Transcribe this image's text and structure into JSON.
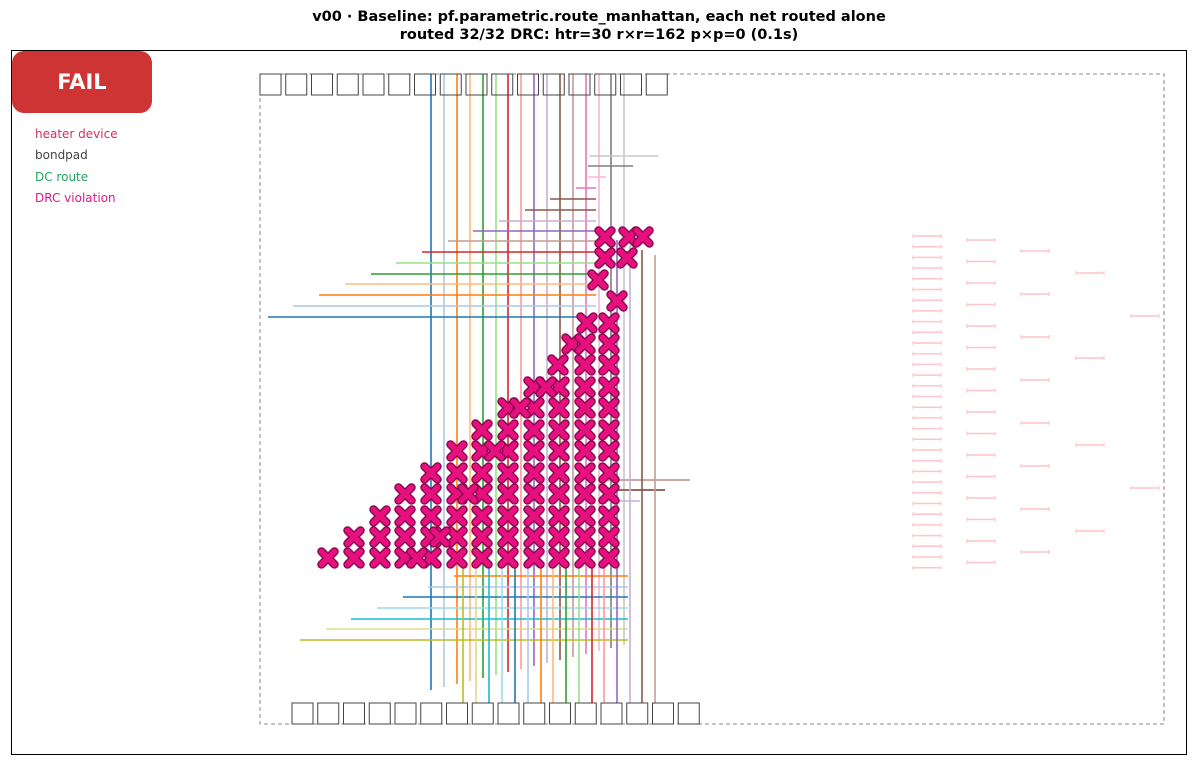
{
  "header": {
    "title": "v00  ·  Baseline: pf.parametric.route_manhattan, each net routed alone",
    "subtitle": "routed 32/32   DRC: htr=30  r×r=162  p×p=0   (0.1s)"
  },
  "status": {
    "label": "FAIL",
    "color": "#cf3434"
  },
  "legend": {
    "items": [
      {
        "label": "heater device",
        "color": "#d03060"
      },
      {
        "label": "bondpad",
        "color": "#444444"
      },
      {
        "label": "DC route",
        "color": "#22a35a"
      },
      {
        "label": "DRC violation",
        "color": "#d81b8c"
      }
    ]
  },
  "colors": {
    "heater": "#ffc4cc",
    "violation_fill": "#e8107e",
    "violation_edge": "#8c0a52",
    "pad_edge": "#444444",
    "boundary": "#888888",
    "route_palette": [
      "#1f77b4",
      "#aec7e8",
      "#ff7f0e",
      "#ffbb78",
      "#2ca02c",
      "#98df8a",
      "#d62728",
      "#ff9896",
      "#9467bd",
      "#c5b0d5",
      "#8c564b",
      "#c49c94",
      "#e377c2",
      "#f7b6d2",
      "#7f7f7f",
      "#c7c7c7",
      "#bcbd22",
      "#dbdb8d",
      "#17becf",
      "#9edae5"
    ]
  }
}
